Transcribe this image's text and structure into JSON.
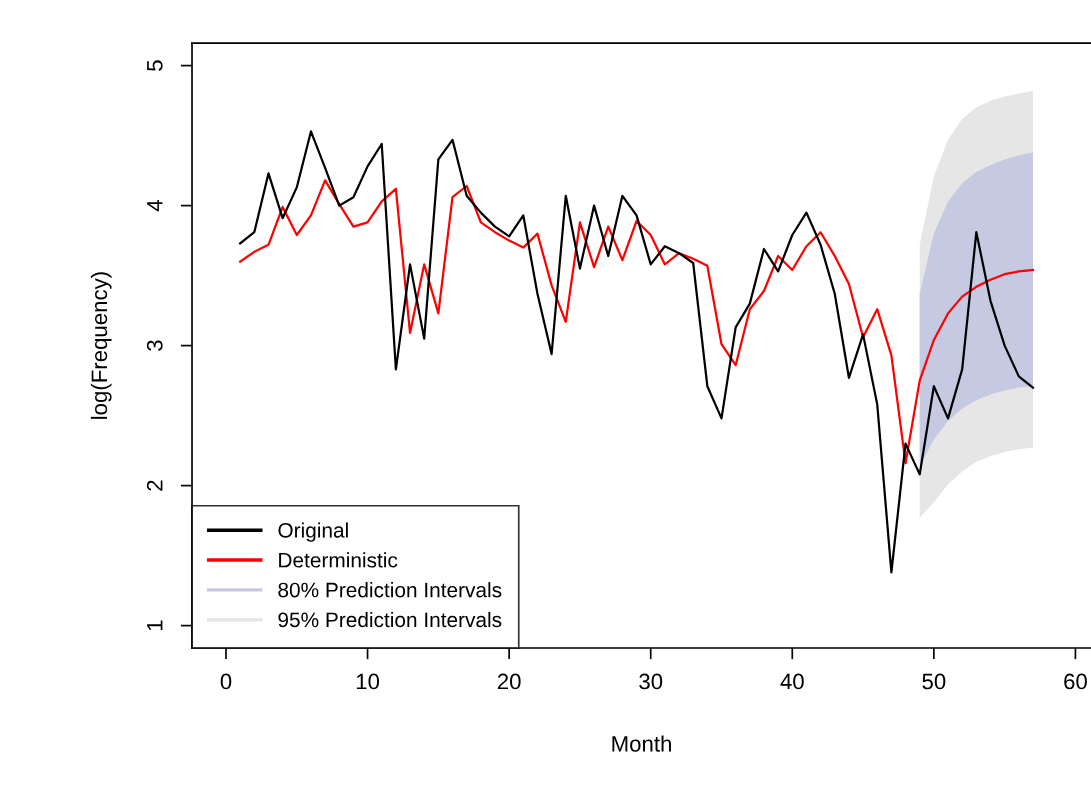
{
  "chart_data": {
    "type": "line",
    "xlabel": "Month",
    "ylabel": "log(Frequency)",
    "xlim": [
      -2.4,
      61.1
    ],
    "ylim": [
      0.84,
      5.16
    ],
    "xticks": [
      0,
      10,
      20,
      30,
      40,
      50,
      60
    ],
    "yticks": [
      1,
      2,
      3,
      4,
      5
    ],
    "grid": false,
    "legend": "bottom left",
    "marker": "none",
    "line_style": "solid",
    "series": [
      {
        "name": "80% Prediction Intervals",
        "type": "area",
        "color": "#c5cae2",
        "x": [
          49,
          50,
          51,
          52,
          53,
          54,
          55,
          56,
          57
        ],
        "values": [
          null,
          null,
          null,
          null,
          null,
          null,
          null,
          null,
          null
        ],
        "lower": [
          2.14,
          2.33,
          2.46,
          2.55,
          2.61,
          2.65,
          2.68,
          2.7,
          2.71
        ],
        "upper": [
          3.37,
          3.8,
          4.03,
          4.16,
          4.24,
          4.29,
          4.33,
          4.36,
          4.38
        ]
      },
      {
        "name": "95% Prediction Intervals",
        "type": "area",
        "color": "#e6e6e6",
        "x": [
          49,
          50,
          51,
          52,
          53,
          54,
          55,
          56,
          57
        ],
        "values": [
          null,
          null,
          null,
          null,
          null,
          null,
          null,
          null,
          null
        ],
        "lower": [
          1.77,
          1.88,
          2.01,
          2.1,
          2.17,
          2.21,
          2.24,
          2.26,
          2.27
        ],
        "upper": [
          3.72,
          4.21,
          4.47,
          4.62,
          4.7,
          4.75,
          4.78,
          4.8,
          4.82
        ]
      },
      {
        "name": "Original",
        "color": "#000000",
        "x": [
          1,
          2,
          3,
          4,
          5,
          6,
          7,
          8,
          9,
          10,
          11,
          12,
          13,
          14,
          15,
          16,
          17,
          18,
          19,
          20,
          21,
          22,
          23,
          24,
          25,
          26,
          27,
          28,
          29,
          30,
          31,
          32,
          33,
          34,
          35,
          36,
          37,
          38,
          39,
          40,
          41,
          42,
          43,
          44,
          45,
          46,
          47,
          48,
          49,
          50,
          51,
          52,
          53,
          54,
          55,
          56,
          57
        ],
        "values": [
          3.73,
          3.81,
          4.23,
          3.91,
          4.13,
          4.53,
          4.27,
          4.0,
          4.06,
          4.28,
          4.44,
          2.83,
          3.58,
          3.05,
          4.33,
          4.47,
          4.07,
          3.95,
          3.85,
          3.78,
          3.93,
          3.37,
          2.94,
          4.07,
          3.55,
          4.0,
          3.64,
          4.07,
          3.93,
          3.58,
          3.71,
          3.66,
          3.59,
          2.71,
          2.48,
          3.13,
          3.3,
          3.69,
          3.53,
          3.79,
          3.95,
          3.72,
          3.37,
          2.77,
          3.08,
          2.58,
          1.38,
          2.3,
          2.08,
          2.71,
          2.48,
          2.83,
          3.81,
          3.32,
          3.0,
          2.78,
          2.7
        ]
      },
      {
        "name": "Deterministic",
        "color": "#ff0000",
        "x": [
          1,
          2,
          3,
          4,
          5,
          6,
          7,
          8,
          9,
          10,
          11,
          12,
          13,
          14,
          15,
          16,
          17,
          18,
          19,
          20,
          21,
          22,
          23,
          24,
          25,
          26,
          27,
          28,
          29,
          30,
          31,
          32,
          33,
          34,
          35,
          36,
          37,
          38,
          39,
          40,
          41,
          42,
          43,
          44,
          45,
          46,
          47,
          48,
          49,
          50,
          51,
          52,
          53,
          54,
          55,
          56,
          57
        ],
        "values": [
          3.6,
          3.67,
          3.72,
          3.99,
          3.79,
          3.93,
          4.18,
          4.01,
          3.85,
          3.88,
          4.03,
          4.12,
          3.09,
          3.58,
          3.23,
          4.06,
          4.14,
          3.88,
          3.81,
          3.75,
          3.7,
          3.8,
          3.43,
          3.17,
          3.88,
          3.56,
          3.85,
          3.61,
          3.89,
          3.79,
          3.58,
          3.66,
          3.62,
          3.57,
          3.01,
          2.86,
          3.26,
          3.39,
          3.64,
          3.54,
          3.71,
          3.81,
          3.64,
          3.44,
          3.06,
          3.26,
          2.93,
          2.16,
          2.75,
          3.04,
          3.23,
          3.35,
          3.42,
          3.47,
          3.51,
          3.53,
          3.54
        ]
      }
    ]
  }
}
